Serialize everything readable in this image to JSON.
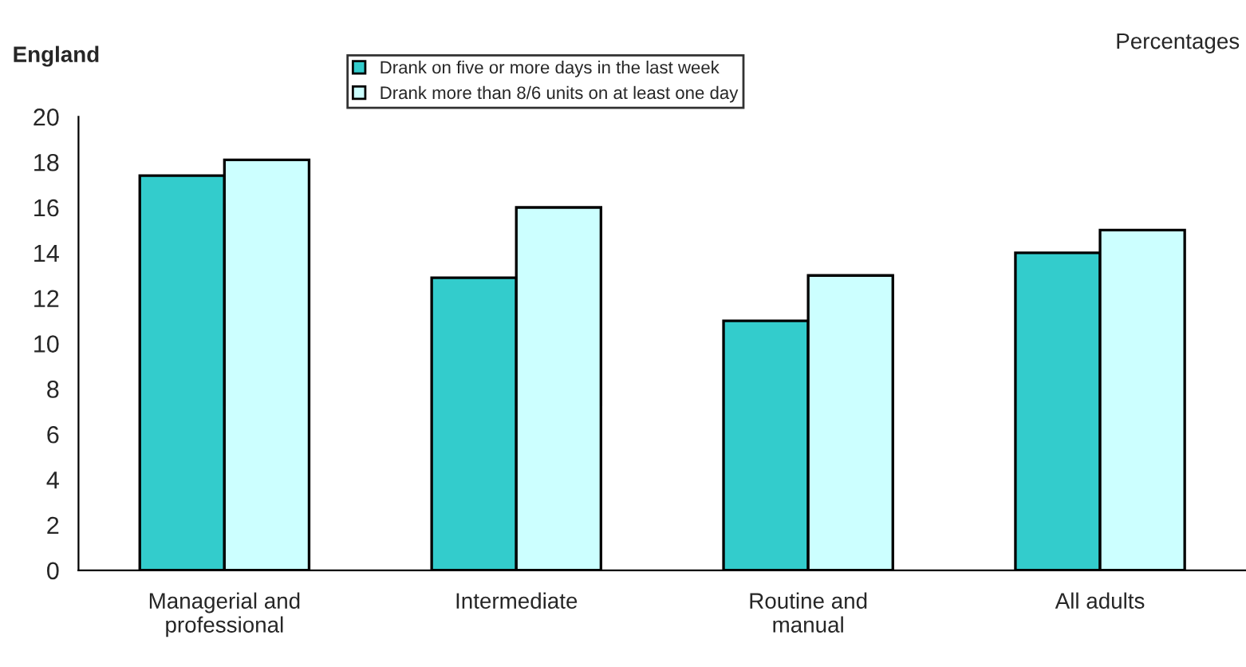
{
  "chart_data": {
    "type": "bar",
    "title": "England",
    "subtitle": "Percentages",
    "categories": [
      "Managerial and\nprofessional",
      "Intermediate",
      "Routine and\nmanual",
      "All adults"
    ],
    "series": [
      {
        "name": "Drank on five or more days in the last week",
        "color": "#33cccc",
        "values": [
          17.4,
          12.9,
          11.0,
          14.0
        ]
      },
      {
        "name": "Drank more than 8/6 units on at least one day",
        "color": "#ccffff",
        "values": [
          18.1,
          16.0,
          13.0,
          15.0
        ]
      }
    ],
    "ylim": [
      0,
      20
    ],
    "yticks": [
      0,
      2,
      4,
      6,
      8,
      10,
      12,
      14,
      16,
      18,
      20
    ],
    "grid": false,
    "legend": "top"
  }
}
